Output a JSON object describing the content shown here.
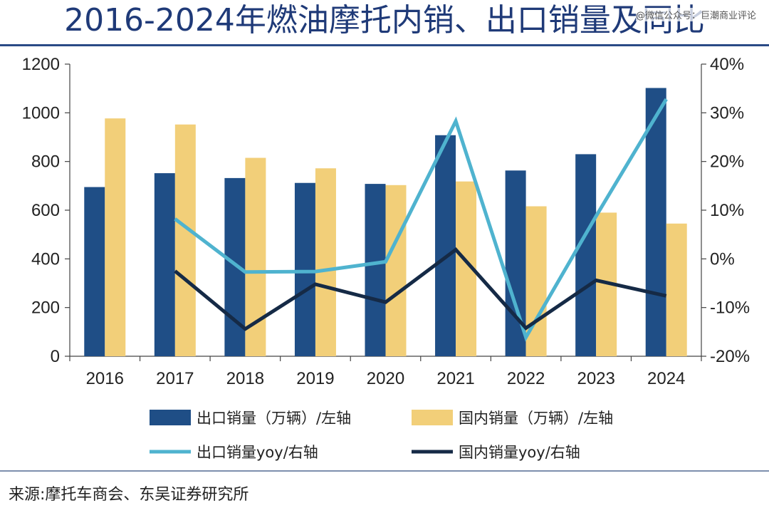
{
  "header": {
    "title": "2016-2024年燃油摩托内销、出口销量及同比",
    "watermark": "@微信公众号：巨潮商业评论"
  },
  "footer": {
    "source": "来源:摩托车商会、东吴证券研究所"
  },
  "colors": {
    "export_bar": "#1f4e86",
    "domestic_bar": "#f2cf79",
    "export_yoy_line": "#4fb3cf",
    "domestic_yoy_line": "#152a46",
    "title": "#1f3a78"
  },
  "chart_data": {
    "type": "bar",
    "title": "2016-2024年燃油摩托内销、出口销量及同比",
    "categories": [
      "2016",
      "2017",
      "2018",
      "2019",
      "2020",
      "2021",
      "2022",
      "2023",
      "2024"
    ],
    "series": [
      {
        "name": "出口销量（万辆）/左轴",
        "type": "bar",
        "axis": "left",
        "values": [
          695,
          752,
          732,
          712,
          708,
          908,
          763,
          830,
          1102
        ]
      },
      {
        "name": "国内销量（万辆）/左轴",
        "type": "bar",
        "axis": "left",
        "values": [
          977,
          952,
          815,
          772,
          703,
          718,
          616,
          590,
          545
        ]
      },
      {
        "name": "出口销量yoy/右轴",
        "type": "line",
        "axis": "right",
        "values": [
          null,
          8.2,
          -2.7,
          -2.6,
          -0.6,
          28.3,
          -16.1,
          8.8,
          32.8
        ]
      },
      {
        "name": "国内销量yoy/右轴",
        "type": "line",
        "axis": "right",
        "values": [
          null,
          -2.5,
          -14.4,
          -5.2,
          -8.9,
          1.9,
          -14.2,
          -4.4,
          -7.6
        ]
      }
    ],
    "y_left": {
      "min": 0,
      "max": 1200,
      "ticks": [
        0,
        200,
        400,
        600,
        800,
        1000,
        1200
      ],
      "tick_labels": [
        "0",
        "200",
        "400",
        "600",
        "800",
        "1000",
        "1200"
      ]
    },
    "y_right": {
      "min": -20,
      "max": 40,
      "ticks": [
        -20,
        -10,
        0,
        10,
        20,
        30,
        40
      ],
      "tick_labels": [
        "-20%",
        "-10%",
        "0%",
        "10%",
        "20%",
        "30%",
        "40%"
      ]
    },
    "xlabel": "",
    "ylabel_left": "",
    "ylabel_right": "",
    "legend_position": "bottom",
    "grid": false
  }
}
